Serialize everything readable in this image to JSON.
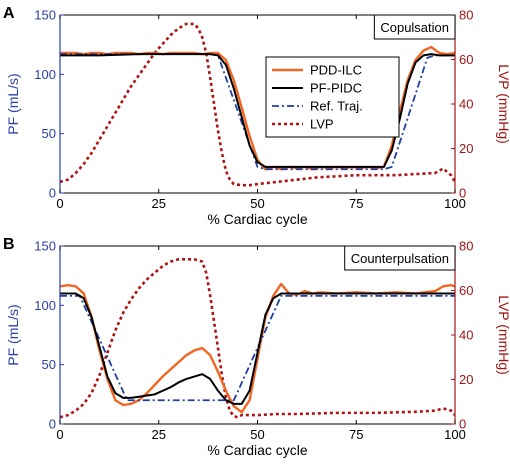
{
  "chart_data": [
    {
      "type": "line",
      "panel_label": "A",
      "annotation": "Copulsation",
      "xlabel": "% Cardiac cycle",
      "ylabel_left": "PF (mL/s)",
      "ylabel_right": "LVP (mmHg)",
      "xlim": [
        0,
        100
      ],
      "ylim_left": [
        0,
        150
      ],
      "ylim_right": [
        0,
        80
      ],
      "xticks": [
        "0",
        "25",
        "50",
        "75",
        "100"
      ],
      "yticks_left": [
        "0",
        "50",
        "100",
        "150"
      ],
      "yticks_right": [
        "0",
        "20",
        "40",
        "60",
        "80"
      ],
      "legend": {
        "placement": "center-right",
        "entries": [
          "PDD-ILC",
          "PF-PIDC",
          "Ref. Traj.",
          "LVP"
        ]
      },
      "series": [
        {
          "name": "PDD-ILC",
          "axis": "left",
          "color": "#f26522",
          "dash": "solid",
          "width": 2.4,
          "x": [
            0,
            2,
            4,
            6,
            8,
            10,
            12,
            14,
            16,
            18,
            20,
            22,
            24,
            26,
            28,
            30,
            32,
            34,
            36,
            38,
            40,
            42,
            44,
            46,
            48,
            50,
            52,
            54,
            56,
            58,
            60,
            62,
            64,
            66,
            68,
            70,
            72,
            74,
            76,
            78,
            80,
            82,
            84,
            86,
            88,
            90,
            92,
            94,
            96,
            98,
            100
          ],
          "y": [
            118,
            118,
            118,
            117,
            118,
            118,
            117,
            118,
            118,
            118,
            117,
            118,
            118,
            117,
            118,
            118,
            118,
            118,
            117,
            118,
            118,
            112,
            95,
            72,
            48,
            28,
            20,
            22,
            20,
            22,
            21,
            22,
            20,
            22,
            21,
            22,
            21,
            22,
            21,
            22,
            21,
            22,
            40,
            68,
            95,
            112,
            120,
            123,
            118,
            117,
            118
          ]
        },
        {
          "name": "PF-PIDC",
          "axis": "left",
          "color": "#000000",
          "dash": "solid",
          "width": 2.0,
          "x": [
            0,
            10,
            20,
            30,
            36,
            38,
            40,
            42,
            44,
            46,
            48,
            50,
            52,
            56,
            60,
            64,
            68,
            72,
            76,
            80,
            82,
            84,
            86,
            88,
            90,
            92,
            94,
            96,
            100
          ],
          "y": [
            116,
            116,
            117,
            117,
            117,
            117,
            116,
            108,
            88,
            64,
            40,
            26,
            22,
            22,
            22,
            22,
            22,
            22,
            22,
            22,
            22,
            36,
            62,
            92,
            110,
            116,
            117,
            116,
            116
          ]
        },
        {
          "name": "Ref. Traj.",
          "axis": "left",
          "color": "#1f3fa0",
          "dash": "dashdot",
          "width": 1.8,
          "x": [
            0,
            38,
            40,
            50,
            52,
            82,
            84,
            93,
            95,
            100
          ],
          "y": [
            117,
            117,
            116,
            22,
            20,
            20,
            22,
            114,
            116,
            116
          ]
        },
        {
          "name": "LVP",
          "axis": "right",
          "color": "#b01212",
          "dash": "dotted",
          "width": 2.6,
          "x": [
            0,
            2,
            4,
            6,
            8,
            10,
            12,
            14,
            16,
            18,
            20,
            22,
            24,
            26,
            28,
            30,
            32,
            34,
            35,
            36,
            37,
            38,
            39,
            40,
            41,
            42,
            43,
            44,
            46,
            48,
            50,
            55,
            60,
            65,
            70,
            75,
            80,
            85,
            90,
            95,
            97,
            99,
            100
          ],
          "y": [
            5,
            6,
            9,
            13,
            18,
            24,
            30,
            36,
            42,
            48,
            53,
            58,
            63,
            67,
            71,
            74,
            76,
            76,
            74,
            70,
            63,
            52,
            40,
            28,
            18,
            10,
            6,
            4,
            3.5,
            3.5,
            4,
            5,
            6,
            7,
            7.5,
            8,
            8,
            8,
            8.5,
            9,
            11,
            8,
            5
          ]
        }
      ]
    },
    {
      "type": "line",
      "panel_label": "B",
      "annotation": "Counterpulsation",
      "xlabel": "% Cardiac cycle",
      "ylabel_left": "PF (mL/s)",
      "ylabel_right": "LVP (mmHg)",
      "xlim": [
        0,
        100
      ],
      "ylim_left": [
        0,
        150
      ],
      "ylim_right": [
        0,
        80
      ],
      "xticks": [
        "0",
        "25",
        "50",
        "75",
        "100"
      ],
      "yticks_left": [
        "0",
        "50",
        "100",
        "150"
      ],
      "yticks_right": [
        "0",
        "20",
        "40",
        "60",
        "80"
      ],
      "series": [
        {
          "name": "PDD-ILC",
          "axis": "left",
          "color": "#f26522",
          "dash": "solid",
          "width": 2.4,
          "x": [
            0,
            2,
            4,
            6,
            8,
            10,
            12,
            14,
            16,
            18,
            20,
            22,
            24,
            26,
            28,
            30,
            32,
            34,
            36,
            38,
            40,
            42,
            44,
            46,
            48,
            50,
            52,
            54,
            56,
            58,
            60,
            62,
            64,
            66,
            70,
            75,
            80,
            85,
            90,
            95,
            97,
            99,
            100
          ],
          "y": [
            116,
            117,
            116,
            110,
            90,
            62,
            38,
            20,
            16,
            17,
            20,
            26,
            33,
            40,
            46,
            52,
            58,
            62,
            64,
            58,
            44,
            28,
            15,
            10,
            20,
            55,
            90,
            108,
            118,
            110,
            109,
            112,
            110,
            111,
            110,
            111,
            110,
            111,
            110,
            112,
            116,
            117,
            116
          ]
        },
        {
          "name": "PF-PIDC",
          "axis": "left",
          "color": "#000000",
          "dash": "solid",
          "width": 2.0,
          "x": [
            0,
            2,
            4,
            6,
            8,
            10,
            12,
            14,
            16,
            18,
            20,
            22,
            24,
            26,
            28,
            30,
            32,
            34,
            36,
            38,
            40,
            42,
            44,
            46,
            48,
            50,
            52,
            54,
            56,
            58,
            60,
            70,
            80,
            90,
            100
          ],
          "y": [
            110,
            110,
            110,
            106,
            90,
            65,
            40,
            26,
            22,
            22,
            23,
            24,
            25,
            28,
            31,
            35,
            38,
            40,
            42,
            38,
            28,
            20,
            17,
            17,
            28,
            60,
            92,
            106,
            110,
            110,
            110,
            110,
            110,
            110,
            110
          ]
        },
        {
          "name": "Ref. Traj.",
          "axis": "left",
          "color": "#1f3fa0",
          "dash": "dashdot",
          "width": 1.8,
          "x": [
            0,
            5,
            17,
            44,
            56,
            100
          ],
          "y": [
            108,
            108,
            20,
            20,
            108,
            108
          ]
        },
        {
          "name": "LVP",
          "axis": "right",
          "color": "#b01212",
          "dash": "dotted",
          "width": 2.6,
          "x": [
            0,
            2,
            4,
            6,
            8,
            10,
            12,
            14,
            16,
            18,
            20,
            22,
            24,
            26,
            28,
            30,
            32,
            34,
            36,
            37,
            38,
            39,
            40,
            41,
            42,
            43,
            44,
            45,
            46,
            48,
            50,
            55,
            60,
            70,
            80,
            90,
            95,
            97,
            99,
            100
          ],
          "y": [
            3,
            4,
            6,
            9,
            14,
            22,
            32,
            42,
            50,
            56,
            61,
            65,
            68,
            71,
            73,
            74,
            74,
            74,
            73,
            68,
            58,
            46,
            34,
            22,
            12,
            6,
            3.5,
            3,
            4,
            4,
            4,
            4.5,
            4.5,
            5,
            5,
            5.5,
            6,
            7,
            6,
            4
          ]
        }
      ]
    }
  ]
}
